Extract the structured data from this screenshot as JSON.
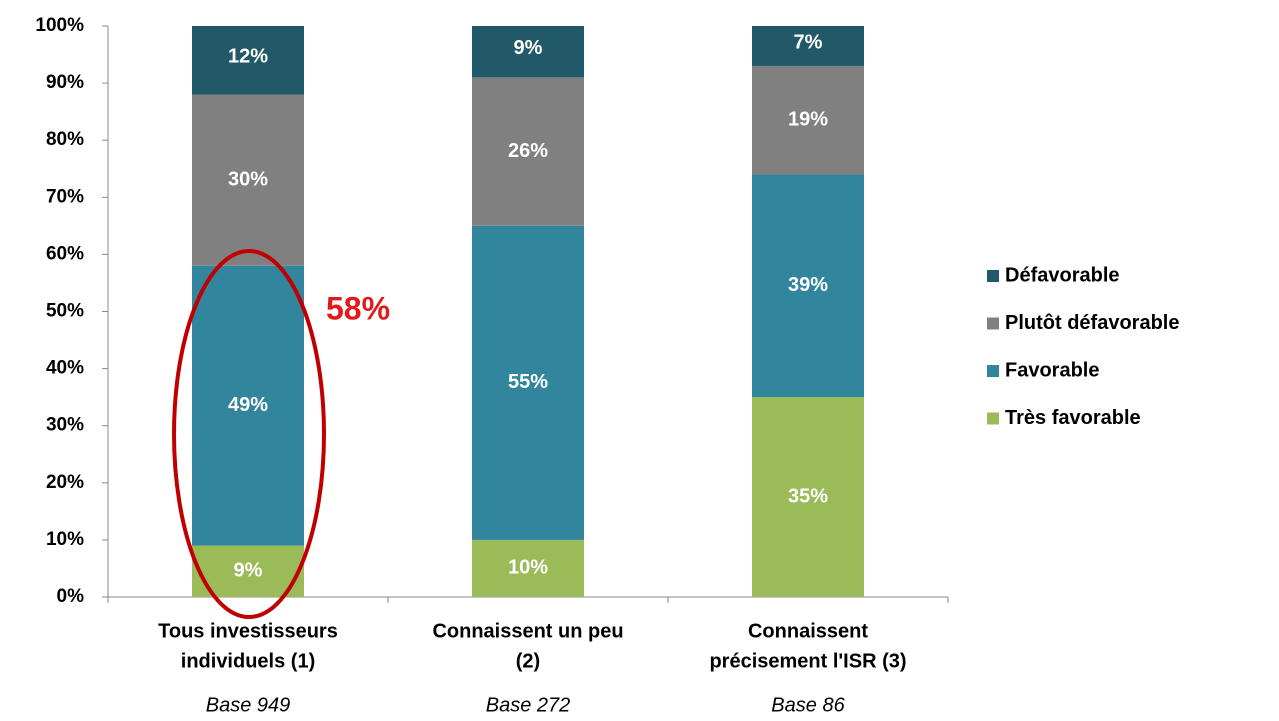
{
  "chart_data": {
    "type": "stacked_bar",
    "categories": [
      [
        "Tous investisseurs",
        "individuels (1)"
      ],
      [
        "Connaissent un peu",
        "(2)"
      ],
      [
        "Connaissent",
        "précisement l'ISR (3)"
      ]
    ],
    "bases": [
      "Base 949",
      "Base 272",
      "Base 86"
    ],
    "series": [
      {
        "name": "Très favorable",
        "color": "#9bbb59",
        "values": [
          9,
          10,
          35
        ],
        "value_labels": [
          "9%",
          "10%",
          "35%"
        ]
      },
      {
        "name": "Favorable",
        "color": "#31859c",
        "values": [
          49,
          55,
          39
        ],
        "value_labels": [
          "49%",
          "55%",
          "39%"
        ]
      },
      {
        "name": "Plutôt défavorable",
        "color": "#808080",
        "values": [
          30,
          26,
          19
        ],
        "value_labels": [
          "30%",
          "26%",
          "19%"
        ]
      },
      {
        "name": "Défavorable",
        "color": "#215968",
        "values": [
          12,
          9,
          7
        ],
        "value_labels": [
          "12%",
          "9%",
          "7%"
        ]
      }
    ],
    "annotation": "58%",
    "ylim": [
      0,
      100
    ],
    "yticks": [
      {
        "value": 0,
        "label": "0%"
      },
      {
        "value": 10,
        "label": "10%"
      },
      {
        "value": 20,
        "label": "20%"
      },
      {
        "value": 30,
        "label": "30%"
      },
      {
        "value": 40,
        "label": "40%"
      },
      {
        "value": 50,
        "label": "50%"
      },
      {
        "value": 60,
        "label": "60%"
      },
      {
        "value": 70,
        "label": "70%"
      },
      {
        "value": 80,
        "label": "80%"
      },
      {
        "value": 90,
        "label": "90%"
      },
      {
        "value": 100,
        "label": "100%"
      }
    ],
    "legend": "right"
  }
}
